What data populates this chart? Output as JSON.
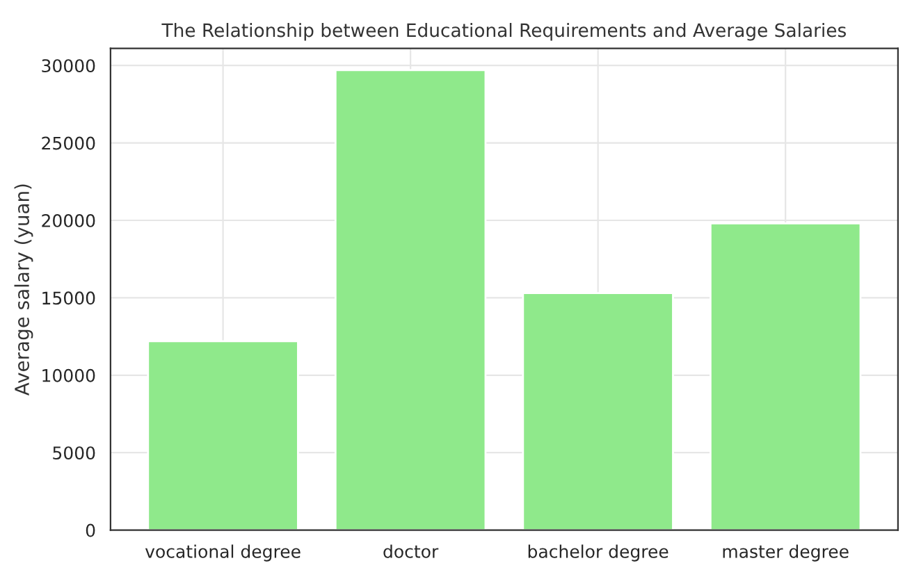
{
  "chart_data": {
    "type": "bar",
    "title": "The Relationship between Educational Requirements and Average Salaries",
    "ylabel": "Average salary (yuan)",
    "categories": [
      "vocational degree",
      "doctor",
      "bachelor degree",
      "master degree"
    ],
    "values": [
      12200,
      29700,
      15300,
      19800
    ],
    "color": "#8fe98b",
    "ylim": [
      0,
      31100
    ],
    "yticks": [
      0,
      5000,
      10000,
      15000,
      20000,
      25000,
      30000
    ],
    "grid": true
  }
}
